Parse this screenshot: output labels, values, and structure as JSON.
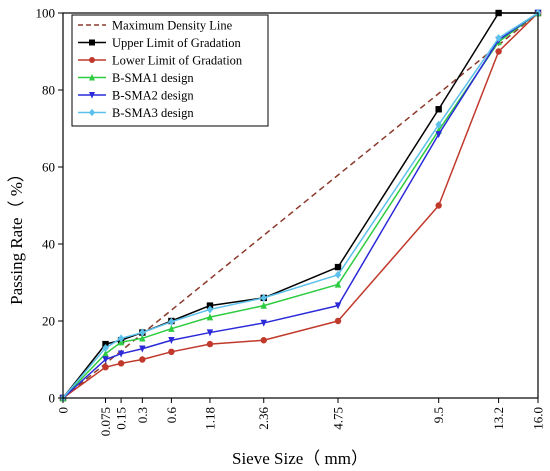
{
  "chart_data": {
    "type": "line",
    "xlabel": "Sieve Size（ mm）",
    "ylabel": "Passing Rate（ %）",
    "ylim": [
      0,
      100
    ],
    "yticks": [
      0,
      20,
      40,
      60,
      80,
      100
    ],
    "x_scale": "power-0.45",
    "categories": [
      "0",
      "0.075",
      "0.15",
      "0.3",
      "0.6",
      "1.18",
      "2.36",
      "4.75",
      "9.5",
      "13.2",
      "16.0"
    ],
    "x": [
      0,
      0.075,
      0.15,
      0.3,
      0.6,
      1.18,
      2.36,
      4.75,
      9.5,
      13.2,
      16.0
    ],
    "legend": "top-left",
    "grid": false,
    "series": [
      {
        "name": "Maximum Density Line",
        "color": "#8b3a2b",
        "style": "dashed",
        "marker": "none",
        "x": [
          0,
          16.0
        ],
        "values": [
          0,
          100
        ]
      },
      {
        "name": "Upper Limit of Gradation",
        "color": "#000000",
        "style": "solid",
        "marker": "square",
        "values": [
          0,
          14,
          15,
          17,
          20,
          24,
          26,
          34,
          75,
          100,
          100
        ]
      },
      {
        "name": "Lower Limit of Gradation",
        "color": "#c0392b",
        "style": "solid",
        "marker": "circle",
        "values": [
          0,
          8,
          9,
          10,
          12,
          14,
          15,
          20,
          50,
          90,
          100
        ]
      },
      {
        "name": "B-SMA1 design",
        "color": "#2ecc40",
        "style": "solid",
        "marker": "triangle",
        "values": [
          0,
          11.5,
          14.5,
          15.5,
          18,
          21,
          24,
          29.5,
          69.5,
          92.5,
          100
        ]
      },
      {
        "name": "B-SMA2 design",
        "color": "#2a2ad8",
        "style": "solid",
        "marker": "triangle-down",
        "values": [
          0,
          10,
          11.5,
          12.8,
          15,
          17,
          19.5,
          24,
          68.5,
          93,
          100
        ]
      },
      {
        "name": "B-SMA3 design",
        "color": "#5bc0eb",
        "style": "solid",
        "marker": "diamond",
        "values": [
          0,
          13,
          15.5,
          17,
          19.8,
          23,
          26,
          32,
          71,
          93.5,
          100
        ]
      }
    ]
  }
}
